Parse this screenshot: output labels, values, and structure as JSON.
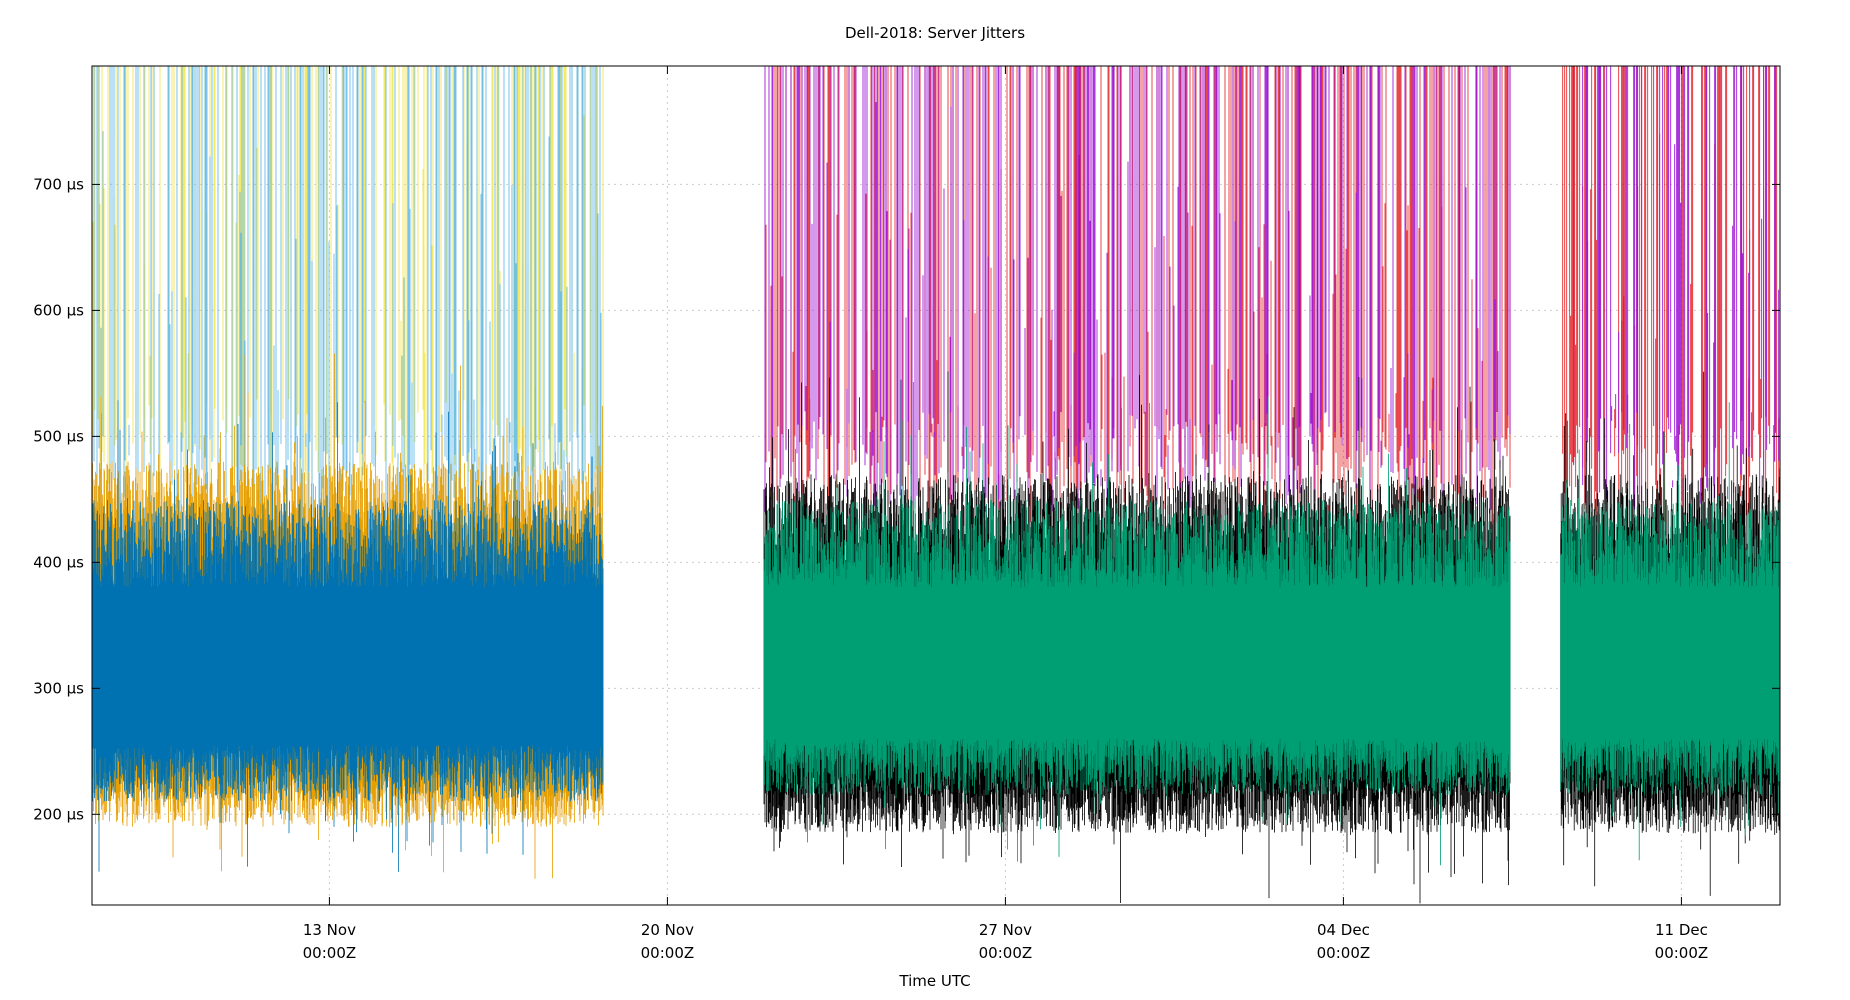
{
  "chart_data": {
    "type": "line",
    "title": "Dell-2018: Server Jitters",
    "xlabel": "Time UTC",
    "ylabel": "",
    "grid": true,
    "legend": "none",
    "xlim": [
      "2018-11-08T02:00:00Z",
      "2018-12-13T01:00:00Z"
    ],
    "ylim": [
      128,
      794
    ],
    "y_unit": "µs",
    "y_ticks": [
      {
        "value": 200,
        "label": "200 µs"
      },
      {
        "value": 300,
        "label": "300 µs"
      },
      {
        "value": 400,
        "label": "400 µs"
      },
      {
        "value": 500,
        "label": "500 µs"
      },
      {
        "value": 600,
        "label": "600 µs"
      },
      {
        "value": 700,
        "label": "700 µs"
      }
    ],
    "x_ticks": [
      {
        "value": "2018-11-13T00:00:00Z",
        "label1": "13 Nov",
        "label2": "00:00Z"
      },
      {
        "value": "2018-11-20T00:00:00Z",
        "label1": "20 Nov",
        "label2": "00:00Z"
      },
      {
        "value": "2018-11-27T00:00:00Z",
        "label1": "27 Nov",
        "label2": "00:00Z"
      },
      {
        "value": "2018-12-04T00:00:00Z",
        "label1": "04 Dec",
        "label2": "00:00Z"
      },
      {
        "value": "2018-12-11T00:00:00Z",
        "label1": "11 Dec",
        "label2": "00:00Z"
      }
    ],
    "series": [
      {
        "color": "#f0e442",
        "kind": "spikes",
        "segments": [
          [
            "2018-11-08T02:00:00Z",
            "2018-11-18T16:00:00Z"
          ]
        ],
        "typical_range": [
          450,
          794
        ]
      },
      {
        "color": "#56b4e9",
        "kind": "spikes",
        "segments": [
          [
            "2018-11-08T02:00:00Z",
            "2018-11-18T16:00:00Z"
          ]
        ],
        "typical_range": [
          420,
          794
        ]
      },
      {
        "color": "#e69f00",
        "kind": "band",
        "segments": [
          [
            "2018-11-08T02:00:00Z",
            "2018-11-18T16:00:00Z"
          ]
        ],
        "typical_range": [
          190,
          480
        ]
      },
      {
        "color": "#0072b2",
        "kind": "band",
        "segments": [
          [
            "2018-11-08T02:00:00Z",
            "2018-11-18T16:00:00Z"
          ]
        ],
        "typical_range": [
          210,
          450
        ]
      },
      {
        "color": "#e41a1c",
        "kind": "spikes",
        "segments": [
          [
            "2018-11-22T00:00:00Z",
            "2018-12-07T11:00:00Z"
          ],
          [
            "2018-12-08T12:00:00Z",
            "2018-12-13T01:00:00Z"
          ]
        ],
        "typical_range": [
          430,
          794
        ]
      },
      {
        "color": "#9400d3",
        "kind": "spikes",
        "segments": [
          [
            "2018-11-22T00:00:00Z",
            "2018-12-07T11:00:00Z"
          ],
          [
            "2018-12-08T12:00:00Z",
            "2018-12-13T01:00:00Z"
          ]
        ],
        "typical_range": [
          440,
          794
        ]
      },
      {
        "color": "#000000",
        "kind": "band",
        "segments": [
          [
            "2018-11-22T00:00:00Z",
            "2018-12-07T11:00:00Z"
          ],
          [
            "2018-12-08T12:00:00Z",
            "2018-12-13T01:00:00Z"
          ]
        ],
        "typical_range": [
          185,
          470
        ]
      },
      {
        "color": "#009e73",
        "kind": "band",
        "segments": [
          [
            "2018-11-22T00:00:00Z",
            "2018-12-07T11:00:00Z"
          ],
          [
            "2018-12-08T12:00:00Z",
            "2018-12-13T01:00:00Z"
          ]
        ],
        "typical_range": [
          215,
          450
        ]
      }
    ]
  }
}
